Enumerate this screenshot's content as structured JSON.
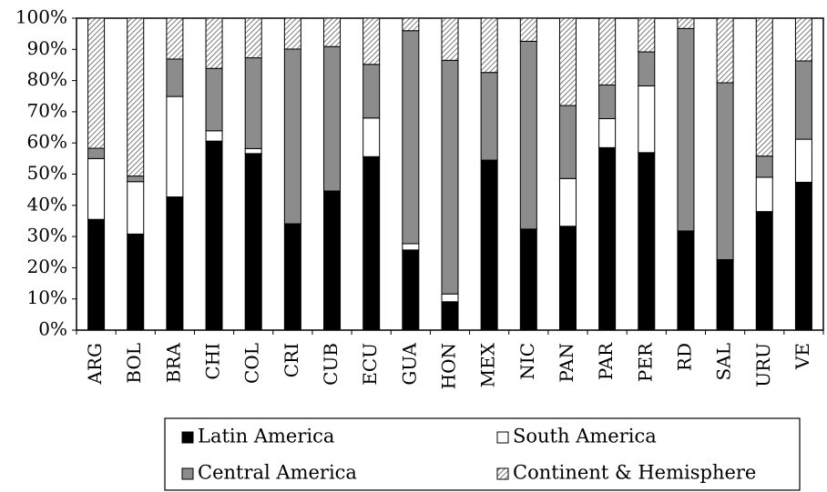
{
  "chart_data": {
    "type": "bar",
    "stacked": true,
    "categories": [
      "ARG",
      "BOL",
      "BRA",
      "CHI",
      "COL",
      "CRI",
      "CUB",
      "ECU",
      "GUA",
      "HON",
      "MEX",
      "NIC",
      "PAN",
      "PAR",
      "PER",
      "RD",
      "SAL",
      "URU",
      "VE"
    ],
    "series": [
      {
        "name": "Latin America",
        "values": [
          35.5,
          30.8,
          42.7,
          60.6,
          56.6,
          34.1,
          44.6,
          55.6,
          25.7,
          9.1,
          54.5,
          32.4,
          33.3,
          58.5,
          56.9,
          31.8,
          22.6,
          38.0,
          47.4
        ]
      },
      {
        "name": "South America",
        "values": [
          19.5,
          16.8,
          32.2,
          3.3,
          1.6,
          0.0,
          0.0,
          12.4,
          2.0,
          2.5,
          0.0,
          0.0,
          15.3,
          9.3,
          21.4,
          0.0,
          0.0,
          11.0,
          13.8
        ]
      },
      {
        "name": "Central America",
        "values": [
          3.3,
          1.8,
          12.0,
          20.0,
          29.1,
          56.0,
          46.3,
          17.2,
          68.3,
          74.9,
          28.1,
          60.2,
          23.4,
          10.8,
          10.9,
          64.9,
          56.7,
          6.8,
          25.1
        ]
      },
      {
        "name": "Continent & Hemisphere",
        "values": [
          41.7,
          50.6,
          13.1,
          16.1,
          12.7,
          9.9,
          9.1,
          14.8,
          4.0,
          13.5,
          17.4,
          7.4,
          28.0,
          21.4,
          10.8,
          3.3,
          20.7,
          44.2,
          13.7
        ]
      }
    ],
    "colors": {
      "Latin America": "#000000",
      "South America": "#ffffff",
      "Central America": "#8c8c8c",
      "Continent & Hemisphere": "hatched"
    },
    "y_ticks": [
      "0%",
      "10%",
      "20%",
      "30%",
      "40%",
      "50%",
      "60%",
      "70%",
      "80%",
      "90%",
      "100%"
    ],
    "ylim": [
      0,
      100
    ],
    "y_unit": "%",
    "grid": false,
    "legend_position": "bottom"
  }
}
